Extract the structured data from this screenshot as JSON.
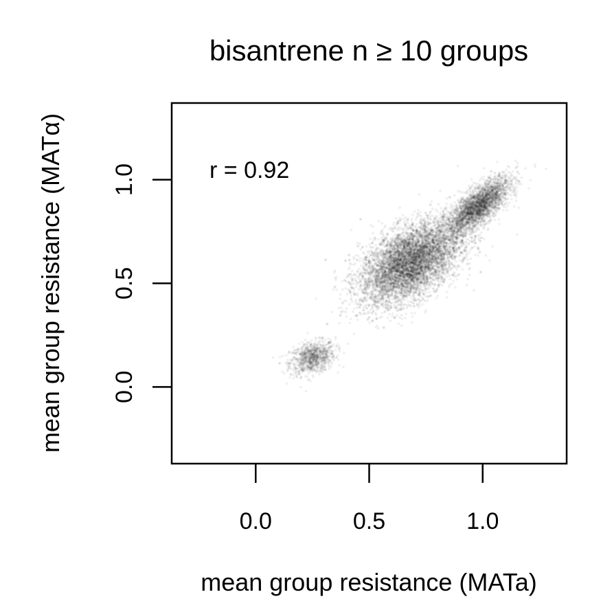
{
  "chart_data": {
    "type": "scatter",
    "title": "bisantrene n ≥ 10 groups",
    "xlabel": "mean group resistance (MATa)",
    "ylabel": "mean group resistance (MATα)",
    "xlim": [
      -0.37,
      1.37
    ],
    "ylim": [
      -0.37,
      1.37
    ],
    "x_ticks": [
      0.0,
      0.5,
      1.0
    ],
    "x_tick_labels": [
      "0.0",
      "0.5",
      "1.0"
    ],
    "y_ticks": [
      0.0,
      0.5,
      1.0
    ],
    "y_tick_labels": [
      "0.0",
      "0.5",
      "1.0"
    ],
    "annotation": {
      "text": "r = 0.92",
      "x": -0.2,
      "y": 1.04
    },
    "point_color": "#000000",
    "grid": false,
    "legend": "none",
    "series": [
      {
        "values_summary": "dense translucent point clouds",
        "clusters": [
          {
            "center": [
              0.25,
              0.14
            ],
            "sd": [
              0.05,
              0.04
            ],
            "rho": 0.3,
            "count": 900
          },
          {
            "center": [
              0.68,
              0.6
            ],
            "sd": [
              0.11,
              0.1
            ],
            "rho": 0.5,
            "count": 6500
          },
          {
            "center": [
              0.98,
              0.87
            ],
            "sd": [
              0.07,
              0.07
            ],
            "rho": 0.75,
            "count": 2800
          }
        ]
      }
    ]
  }
}
